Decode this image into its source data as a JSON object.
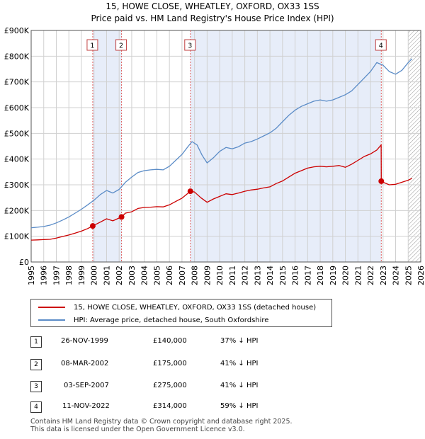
{
  "title": "15, HOWE CLOSE, WHEATLEY, OXFORD, OX33 1SS",
  "subtitle": "Price paid vs. HM Land Registry's House Price Index (HPI)",
  "chart_data": {
    "type": "line",
    "xlim": [
      1995,
      2026
    ],
    "ylim": [
      0,
      900000
    ],
    "x_ticks": [
      "1995",
      "1996",
      "1997",
      "1998",
      "1999",
      "2000",
      "2001",
      "2002",
      "2003",
      "2004",
      "2005",
      "2006",
      "2007",
      "2008",
      "2009",
      "2010",
      "2011",
      "2012",
      "2013",
      "2014",
      "2015",
      "2016",
      "2017",
      "2018",
      "2019",
      "2020",
      "2021",
      "2022",
      "2023",
      "2024",
      "2025",
      "2026"
    ],
    "y_ticks": [
      {
        "value": 0,
        "label": "£0"
      },
      {
        "value": 100000,
        "label": "£100K"
      },
      {
        "value": 200000,
        "label": "£200K"
      },
      {
        "value": 300000,
        "label": "£300K"
      },
      {
        "value": 400000,
        "label": "£400K"
      },
      {
        "value": 500000,
        "label": "£500K"
      },
      {
        "value": 600000,
        "label": "£600K"
      },
      {
        "value": 700000,
        "label": "£700K"
      },
      {
        "value": 800000,
        "label": "£800K"
      },
      {
        "value": 900000,
        "label": "£900K"
      }
    ],
    "grid": true,
    "shaded_periods": [
      [
        1999.9,
        2002.19
      ],
      [
        2007.67,
        2022.86
      ]
    ],
    "projection_start": 2025.0,
    "series": [
      {
        "name": "15, HOWE CLOSE, WHEATLEY, OXFORD, OX33 1SS (detached house)",
        "color": "#cc0000",
        "x": [
          1995.0,
          1995.5,
          1996.0,
          1996.5,
          1997.0,
          1997.5,
          1998.0,
          1998.5,
          1999.0,
          1999.5,
          1999.9,
          2000.5,
          2001.0,
          2001.5,
          2002.19,
          2002.5,
          2003.0,
          2003.5,
          2004.0,
          2004.5,
          2005.0,
          2005.5,
          2006.0,
          2006.5,
          2007.0,
          2007.67,
          2008.0,
          2008.5,
          2009.0,
          2009.5,
          2010.0,
          2010.5,
          2011.0,
          2011.5,
          2012.0,
          2012.5,
          2013.0,
          2013.5,
          2014.0,
          2014.5,
          2015.0,
          2015.5,
          2016.0,
          2016.5,
          2017.0,
          2017.5,
          2018.0,
          2018.5,
          2019.0,
          2019.5,
          2020.0,
          2020.5,
          2021.0,
          2021.5,
          2022.0,
          2022.5,
          2022.85,
          2022.86,
          2023.0,
          2023.5,
          2024.0,
          2024.5,
          2025.0,
          2025.3
        ],
        "y": [
          85000,
          86000,
          87000,
          88000,
          93000,
          99000,
          105000,
          112000,
          120000,
          130000,
          140000,
          155000,
          168000,
          160000,
          175000,
          190000,
          195000,
          208000,
          212000,
          213000,
          215000,
          214000,
          222000,
          235000,
          248000,
          275000,
          272000,
          250000,
          232000,
          245000,
          255000,
          265000,
          262000,
          268000,
          275000,
          280000,
          283000,
          288000,
          292000,
          305000,
          315000,
          330000,
          345000,
          355000,
          365000,
          370000,
          372000,
          370000,
          372000,
          375000,
          368000,
          380000,
          395000,
          410000,
          420000,
          435000,
          455000,
          314000,
          310000,
          300000,
          302000,
          310000,
          318000,
          325000
        ]
      },
      {
        "name": "HPI: Average price, detached house, South Oxfordshire",
        "color": "#5b8cc7",
        "x": [
          1995.0,
          1995.5,
          1996.0,
          1996.5,
          1997.0,
          1997.5,
          1998.0,
          1998.5,
          1999.0,
          1999.5,
          2000.0,
          2000.5,
          2001.0,
          2001.5,
          2002.0,
          2002.5,
          2003.0,
          2003.5,
          2004.0,
          2004.5,
          2005.0,
          2005.5,
          2006.0,
          2006.5,
          2007.0,
          2007.5,
          2007.8,
          2008.2,
          2008.6,
          2009.0,
          2009.5,
          2010.0,
          2010.5,
          2011.0,
          2011.5,
          2012.0,
          2012.5,
          2013.0,
          2013.5,
          2014.0,
          2014.5,
          2015.0,
          2015.5,
          2016.0,
          2016.5,
          2017.0,
          2017.5,
          2018.0,
          2018.5,
          2019.0,
          2019.5,
          2020.0,
          2020.5,
          2021.0,
          2021.5,
          2022.0,
          2022.5,
          2023.0,
          2023.5,
          2024.0,
          2024.5,
          2025.0,
          2025.3
        ],
        "y": [
          133000,
          135000,
          138000,
          143000,
          152000,
          163000,
          175000,
          190000,
          205000,
          222000,
          240000,
          262000,
          278000,
          268000,
          282000,
          310000,
          330000,
          348000,
          355000,
          358000,
          360000,
          358000,
          372000,
          395000,
          418000,
          450000,
          468000,
          455000,
          415000,
          385000,
          405000,
          430000,
          445000,
          440000,
          448000,
          462000,
          468000,
          478000,
          490000,
          502000,
          520000,
          545000,
          570000,
          590000,
          605000,
          615000,
          625000,
          630000,
          625000,
          630000,
          640000,
          650000,
          665000,
          690000,
          715000,
          740000,
          775000,
          765000,
          740000,
          730000,
          745000,
          775000,
          790000
        ]
      }
    ],
    "sales": [
      {
        "label": "1",
        "x": 1999.9,
        "y": 140000
      },
      {
        "label": "2",
        "x": 2002.19,
        "y": 175000
      },
      {
        "label": "3",
        "x": 2007.67,
        "y": 275000
      },
      {
        "label": "4",
        "x": 2022.86,
        "y": 314000
      }
    ]
  },
  "legend": {
    "items": [
      {
        "label": "15, HOWE CLOSE, WHEATLEY, OXFORD, OX33 1SS (detached house)",
        "color": "#cc0000"
      },
      {
        "label": "HPI: Average price, detached house, South Oxfordshire",
        "color": "#5b8cc7"
      }
    ]
  },
  "transactions": [
    {
      "num": "1",
      "date": "26-NOV-1999",
      "price": "£140,000",
      "diff": "37% ↓ HPI"
    },
    {
      "num": "2",
      "date": "08-MAR-2002",
      "price": "£175,000",
      "diff": "41% ↓ HPI"
    },
    {
      "num": "3",
      "date": "03-SEP-2007",
      "price": "£275,000",
      "diff": "41% ↓ HPI"
    },
    {
      "num": "4",
      "date": "11-NOV-2022",
      "price": "£314,000",
      "diff": "59% ↓ HPI"
    }
  ],
  "footer": {
    "line1": "Contains HM Land Registry data © Crown copyright and database right 2025.",
    "line2": "This data is licensed under the Open Government Licence v3.0."
  }
}
